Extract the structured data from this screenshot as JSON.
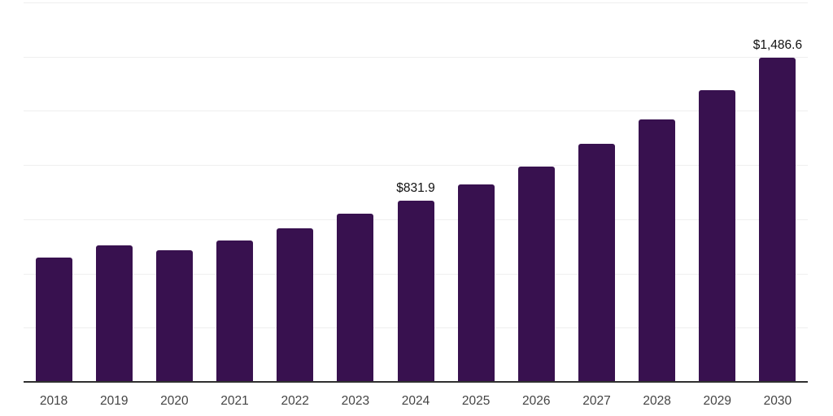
{
  "chart_data": {
    "type": "bar",
    "title": "",
    "xlabel": "",
    "ylabel": "",
    "categories": [
      "2018",
      "2019",
      "2020",
      "2021",
      "2022",
      "2023",
      "2024",
      "2025",
      "2026",
      "2027",
      "2028",
      "2029",
      "2030"
    ],
    "values": [
      571,
      627,
      605,
      649,
      705,
      772,
      831.9,
      906,
      988,
      1092,
      1204,
      1338,
      1486.6
    ],
    "data_labels": [
      "",
      "",
      "",
      "",
      "",
      "",
      "$831.9",
      "",
      "",
      "",
      "",
      "",
      "$1,486.6"
    ],
    "ylim": [
      0,
      1740
    ],
    "gridline_count": 7,
    "grid": "horizontal",
    "legend_position": "none",
    "y_axis_labels_visible": false
  },
  "colors": {
    "bar": "#38114F",
    "gridline": "#efefef",
    "axis_line": "#2f2f2f",
    "tick_label": "#444444",
    "data_label": "#111111",
    "background": "#ffffff"
  }
}
